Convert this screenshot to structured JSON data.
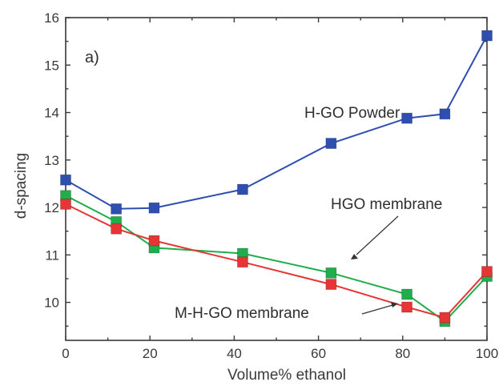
{
  "chart_data": {
    "type": "line",
    "title": "",
    "panel_label": "a)",
    "xlabel": "Volume% ethanol",
    "ylabel": "d-spacing",
    "xlim": [
      0,
      100
    ],
    "ylim": [
      9.2,
      16
    ],
    "xticks": [
      0,
      20,
      40,
      60,
      80,
      100
    ],
    "yticks": [
      10,
      11,
      12,
      13,
      14,
      15,
      16
    ],
    "grid": false,
    "legend": "none",
    "series": [
      {
        "key": "hgo-powder",
        "color": "#2e4fb0",
        "x": [
          0,
          12,
          21,
          42,
          63,
          81,
          90,
          100
        ],
        "y": [
          12.58,
          11.97,
          11.99,
          12.38,
          13.35,
          13.88,
          13.97,
          15.62
        ]
      },
      {
        "key": "hgo-membrane",
        "color": "#1fae4b",
        "x": [
          0,
          12,
          21,
          42,
          63,
          81,
          90,
          100
        ],
        "y": [
          12.25,
          11.7,
          11.15,
          11.03,
          10.62,
          10.17,
          9.6,
          10.55
        ]
      },
      {
        "key": "m-hgo-membrane",
        "color": "#e53535",
        "x": [
          0,
          12,
          21,
          42,
          63,
          81,
          90,
          100
        ],
        "y": [
          12.07,
          11.55,
          11.3,
          10.85,
          10.38,
          9.9,
          9.68,
          10.65
        ]
      }
    ],
    "annotations": [
      {
        "text": "H-GO Powder"
      },
      {
        "text": "HGO membrane"
      },
      {
        "text": "M-H-GO membrane"
      }
    ]
  }
}
